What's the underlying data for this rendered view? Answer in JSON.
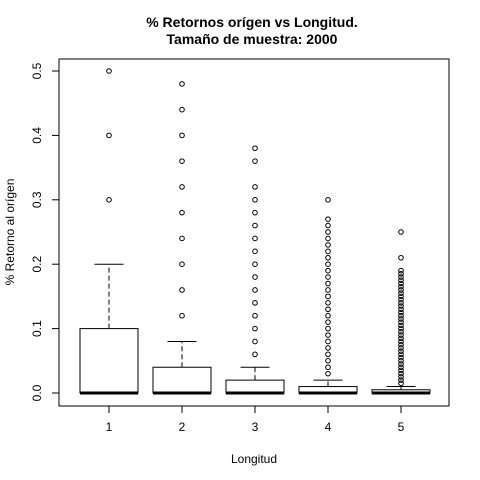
{
  "chart_data": {
    "type": "boxplot",
    "title": "% Retornos orígen vs Longitud.",
    "subtitle": "Tamaño de muestra:  2000",
    "xlabel": "Longitud",
    "ylabel": "% Retorno al orígen",
    "categories": [
      "1",
      "2",
      "3",
      "4",
      "5"
    ],
    "ylim": [
      -0.02,
      0.52
    ],
    "yticks": [
      0.0,
      0.1,
      0.2,
      0.3,
      0.4,
      0.5
    ],
    "ytick_labels": [
      "0.0",
      "0.1",
      "0.2",
      "0.3",
      "0.4",
      "0.5"
    ],
    "boxes": [
      {
        "category": "1",
        "whisker_low": 0.0,
        "q1": 0.0,
        "median": 0.0,
        "q3": 0.1,
        "whisker_high": 0.2,
        "outliers": [
          0.3,
          0.4,
          0.5
        ]
      },
      {
        "category": "2",
        "whisker_low": 0.0,
        "q1": 0.0,
        "median": 0.0,
        "q3": 0.04,
        "whisker_high": 0.08,
        "outliers": [
          0.12,
          0.16,
          0.2,
          0.24,
          0.28,
          0.32,
          0.36,
          0.4,
          0.44,
          0.48
        ]
      },
      {
        "category": "3",
        "whisker_low": 0.0,
        "q1": 0.0,
        "median": 0.0,
        "q3": 0.02,
        "whisker_high": 0.04,
        "outliers": [
          0.06,
          0.08,
          0.1,
          0.12,
          0.14,
          0.16,
          0.18,
          0.2,
          0.22,
          0.24,
          0.26,
          0.28,
          0.3,
          0.32,
          0.36,
          0.38
        ]
      },
      {
        "category": "4",
        "whisker_low": 0.0,
        "q1": 0.0,
        "median": 0.0,
        "q3": 0.01,
        "whisker_high": 0.02,
        "outliers": [
          0.03,
          0.04,
          0.05,
          0.06,
          0.07,
          0.08,
          0.09,
          0.1,
          0.11,
          0.12,
          0.13,
          0.14,
          0.15,
          0.16,
          0.17,
          0.18,
          0.19,
          0.2,
          0.21,
          0.22,
          0.23,
          0.24,
          0.25,
          0.26,
          0.27,
          0.3
        ]
      },
      {
        "category": "5",
        "whisker_low": 0.0,
        "q1": 0.0,
        "median": 0.0,
        "q3": 0.005,
        "whisker_high": 0.01,
        "outliers": [
          0.015,
          0.02,
          0.025,
          0.03,
          0.035,
          0.04,
          0.045,
          0.05,
          0.055,
          0.06,
          0.065,
          0.07,
          0.075,
          0.08,
          0.085,
          0.09,
          0.095,
          0.1,
          0.105,
          0.11,
          0.115,
          0.12,
          0.125,
          0.13,
          0.135,
          0.14,
          0.145,
          0.15,
          0.155,
          0.16,
          0.165,
          0.17,
          0.175,
          0.18,
          0.185,
          0.19,
          0.21,
          0.25
        ]
      }
    ],
    "grid": false,
    "legend": "none"
  }
}
